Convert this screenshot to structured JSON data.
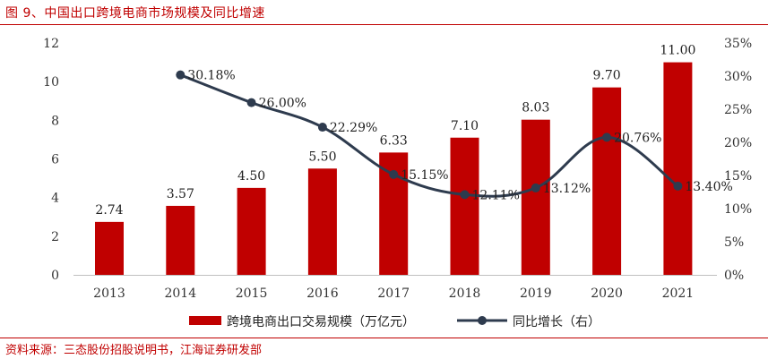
{
  "figure": {
    "title": "图 9、中国出口跨境电商市场规模及同比增速",
    "source": "资料来源：三态股份招股说明书，江海证券研发部"
  },
  "chart_data": {
    "type": "bar+line",
    "categories": [
      "2013",
      "2014",
      "2015",
      "2016",
      "2017",
      "2018",
      "2019",
      "2020",
      "2021"
    ],
    "series": [
      {
        "name": "跨境电商出口交易规模（万亿元）",
        "type": "bar",
        "axis": "left",
        "color": "#c00000",
        "values": [
          2.74,
          3.57,
          4.5,
          5.5,
          6.33,
          7.1,
          8.03,
          9.7,
          11.0
        ],
        "labels": [
          "2.74",
          "3.57",
          "4.50",
          "5.50",
          "6.33",
          "7.10",
          "8.03",
          "9.70",
          "11.00"
        ]
      },
      {
        "name": "同比增长（右）",
        "type": "line",
        "axis": "right",
        "color": "#2e3b4e",
        "values": [
          null,
          30.18,
          26.0,
          22.29,
          15.15,
          12.11,
          13.12,
          20.76,
          13.4
        ],
        "labels": [
          "",
          "30.18%",
          "26.00%",
          "22.29%",
          "15.15%",
          "12.11%",
          "13.12%",
          "20.76%",
          "13.40%"
        ]
      }
    ],
    "y_left": {
      "min": 0,
      "max": 12,
      "step": 2,
      "ticks": [
        "0",
        "2",
        "4",
        "6",
        "8",
        "10",
        "12"
      ]
    },
    "y_right": {
      "min": 0,
      "max": 35,
      "step": 5,
      "ticks": [
        "0%",
        "5%",
        "10%",
        "15%",
        "20%",
        "25%",
        "30%",
        "35%"
      ]
    },
    "legend": {
      "position": "bottom"
    }
  }
}
